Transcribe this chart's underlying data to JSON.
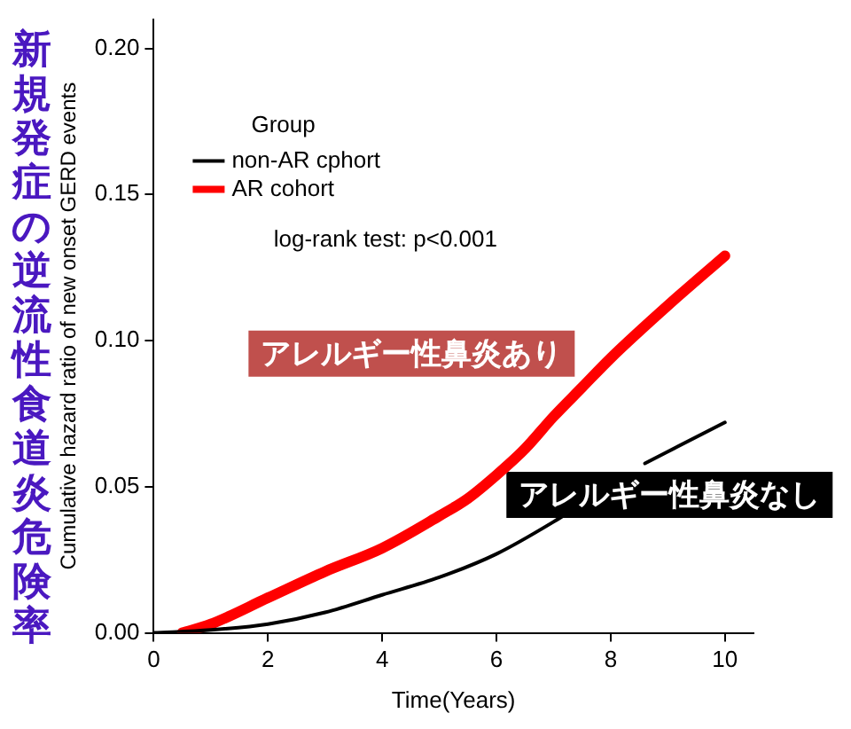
{
  "chart_data": {
    "type": "line",
    "title": "新規発症の逆流性食道炎危険率",
    "xlabel": "Time(Years)",
    "ylabel": "Cumulative hazard ratio of new onset GERD events",
    "legend_title": "Group",
    "legend": "top left",
    "grid": false,
    "marker": "none",
    "xlim": [
      0,
      10.5
    ],
    "xticks": [
      0,
      2,
      4,
      6,
      8,
      10
    ],
    "ylim": [
      0,
      0.21
    ],
    "yticks": [
      {
        "value": 0,
        "label": "0.00"
      },
      {
        "value": 0.05,
        "label": "0.05"
      },
      {
        "value": 0.1,
        "label": "0.10"
      },
      {
        "value": 0.15,
        "label": "0.15"
      },
      {
        "value": 0.2,
        "label": "0.20"
      }
    ],
    "series": [
      {
        "name": "non-AR cphort",
        "color": "#000000",
        "x": [
          0,
          1,
          2,
          3,
          4,
          5,
          6,
          7,
          7.4,
          8,
          8.6,
          9,
          10
        ],
        "values": [
          0,
          0.001,
          0.003,
          0.007,
          0.013,
          0.019,
          0.027,
          0.038,
          0.043,
          null,
          0.058,
          0.062,
          0.072
        ]
      },
      {
        "name": "AR cohort",
        "color": "#ff0000",
        "x": [
          0.5,
          1,
          2,
          3,
          4,
          5,
          5.5,
          6,
          6.5,
          7,
          7.5,
          8,
          9,
          10
        ],
        "values": [
          0,
          0.003,
          0.012,
          0.021,
          0.029,
          0.04,
          0.046,
          0.054,
          0.063,
          0.074,
          0.084,
          0.094,
          0.112,
          0.129
        ]
      }
    ],
    "annotations": [
      "log-rank test: p<0.001",
      "アレルギー性鼻炎あり",
      "アレルギー性鼻炎なし"
    ]
  }
}
